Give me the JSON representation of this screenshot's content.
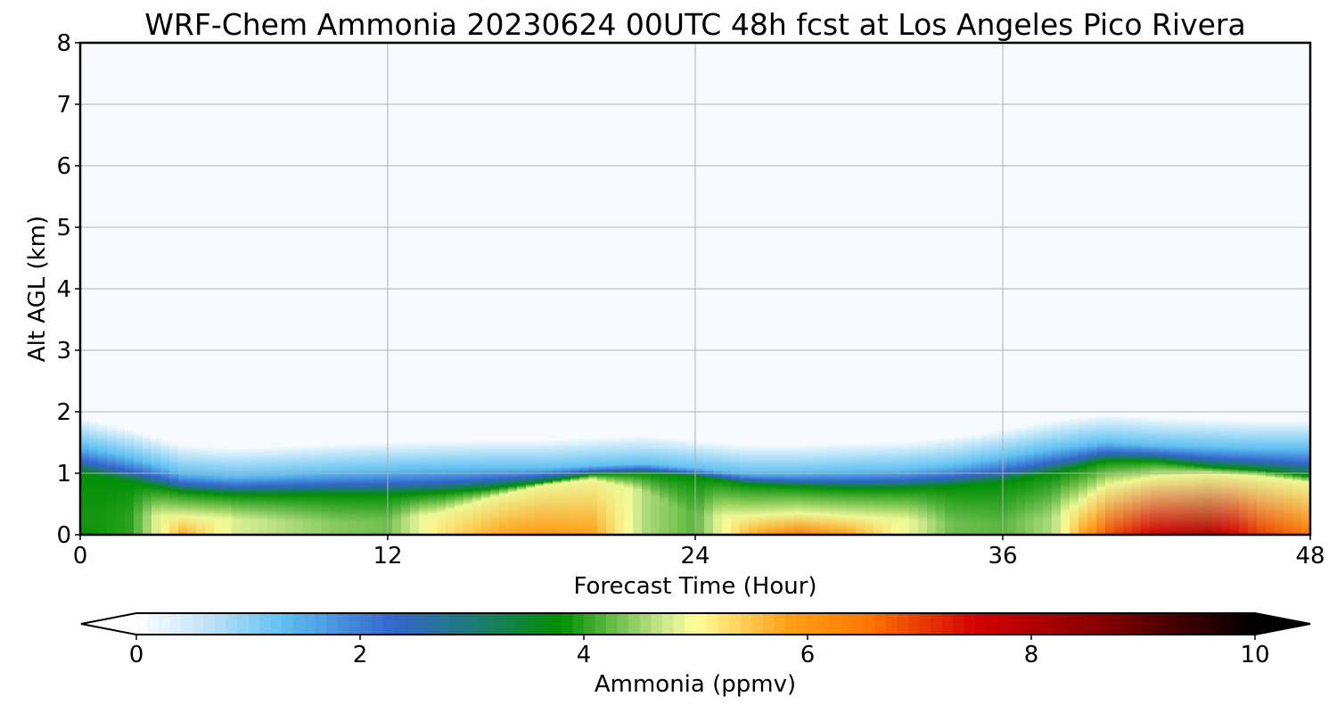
{
  "chart_data": {
    "type": "heatmap",
    "title": "WRF-Chem Ammonia  20230624 00UTC 48h fcst at Los Angeles Pico Rivera",
    "xlabel": "Forecast Time (Hour)",
    "ylabel": "Alt AGL (km)",
    "xlim": [
      0,
      48
    ],
    "ylim": [
      0,
      8
    ],
    "x_ticks": [
      "0",
      "12",
      "24",
      "36",
      "48"
    ],
    "y_ticks": [
      "0",
      "1",
      "2",
      "3",
      "4",
      "5",
      "6",
      "7",
      "8"
    ],
    "grid": true,
    "colorbar": {
      "label": "Ammonia  (ppmv)",
      "range": [
        0,
        10
      ],
      "ticks": [
        "0",
        "2",
        "4",
        "6",
        "8",
        "10"
      ],
      "extend": "both",
      "placement": "bottom",
      "stops": [
        {
          "v": 0,
          "c": "#ffffff"
        },
        {
          "v": 0.6,
          "c": "#c6e4f7"
        },
        {
          "v": 1.3,
          "c": "#5fc0f2"
        },
        {
          "v": 2.3,
          "c": "#3366cc"
        },
        {
          "v": 3.0,
          "c": "#1f7a78"
        },
        {
          "v": 3.8,
          "c": "#008f00"
        },
        {
          "v": 4.7,
          "c": "#c8e68c"
        },
        {
          "v": 5.0,
          "c": "#ffff9a"
        },
        {
          "v": 5.8,
          "c": "#ffa21a"
        },
        {
          "v": 6.5,
          "c": "#ff7a00"
        },
        {
          "v": 7.5,
          "c": "#d40000"
        },
        {
          "v": 8.6,
          "c": "#880000"
        },
        {
          "v": 10,
          "c": "#000000"
        }
      ]
    },
    "profiles": {
      "hours": [
        0,
        2,
        4,
        6,
        8,
        10,
        12,
        14,
        16,
        18,
        20,
        22,
        24,
        26,
        28,
        30,
        32,
        34,
        36,
        38,
        40,
        42,
        44,
        46,
        48
      ],
      "boundary_layer_top_km": [
        1.45,
        1.25,
        1.0,
        0.95,
        0.98,
        1.02,
        1.05,
        1.07,
        1.08,
        1.08,
        1.12,
        1.15,
        1.08,
        1.0,
        1.0,
        1.03,
        1.05,
        1.12,
        1.25,
        1.4,
        1.5,
        1.45,
        1.42,
        1.4,
        1.4
      ],
      "green_layer_top_km": [
        1.0,
        0.85,
        0.7,
        0.65,
        0.65,
        0.65,
        0.65,
        0.68,
        0.75,
        0.85,
        0.98,
        1.0,
        0.95,
        0.82,
        0.78,
        0.75,
        0.75,
        0.78,
        0.85,
        1.0,
        1.2,
        1.2,
        1.1,
        1.05,
        0.95
      ],
      "surface_peak_ppmv": [
        3.8,
        4.0,
        5.7,
        4.8,
        4.6,
        4.4,
        4.3,
        5.2,
        5.7,
        6.0,
        5.8,
        4.6,
        4.2,
        5.6,
        6.5,
        5.8,
        5.0,
        4.3,
        4.2,
        4.6,
        6.8,
        7.6,
        8.0,
        7.0,
        6.5
      ],
      "surface_peak_depth_km": [
        0.2,
        0.3,
        0.3,
        0.25,
        0.22,
        0.2,
        0.22,
        0.35,
        0.6,
        0.8,
        0.9,
        0.7,
        0.3,
        0.3,
        0.35,
        0.3,
        0.25,
        0.2,
        0.2,
        0.25,
        0.8,
        0.95,
        1.0,
        0.95,
        0.85
      ]
    }
  }
}
